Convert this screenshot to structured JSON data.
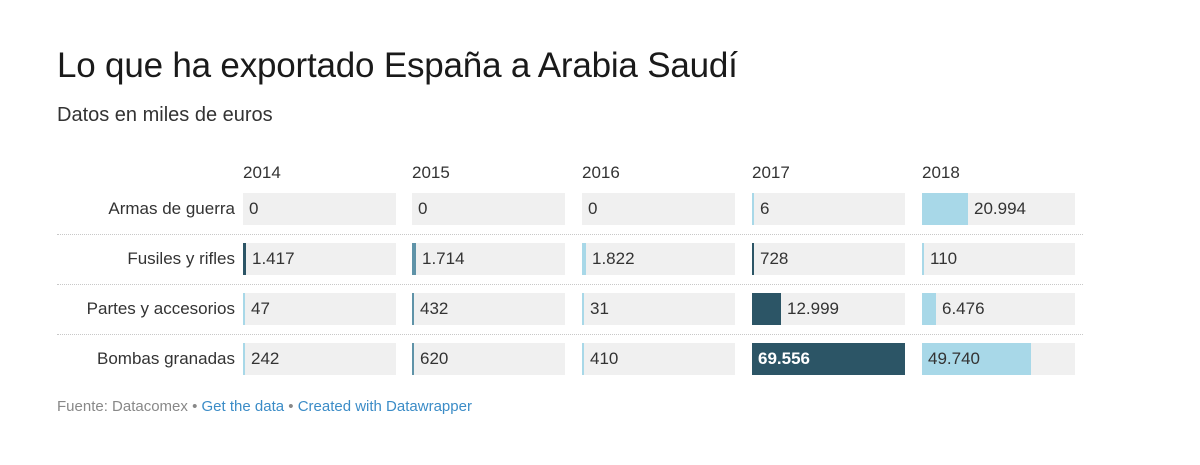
{
  "chart_data": {
    "type": "table",
    "title": "Lo que ha exportado España a Arabia Saudí",
    "subtitle": "Datos en miles de euros",
    "columns": [
      "2014",
      "2015",
      "2016",
      "2017",
      "2018"
    ],
    "rows": [
      {
        "label": "Armas de guerra",
        "values": [
          0,
          0,
          0,
          6,
          20994
        ],
        "display": [
          "0",
          "0",
          "0",
          "6",
          "20.994"
        ]
      },
      {
        "label": "Fusiles y rifles",
        "values": [
          1417,
          1714,
          1822,
          728,
          110
        ],
        "display": [
          "1.417",
          "1.714",
          "1.822",
          "728",
          "110"
        ]
      },
      {
        "label": "Partes y accesorios",
        "values": [
          47,
          432,
          31,
          12999,
          6476
        ],
        "display": [
          "47",
          "432",
          "31",
          "12.999",
          "6.476"
        ]
      },
      {
        "label": "Bombas granadas",
        "values": [
          242,
          620,
          410,
          69556,
          49740
        ],
        "display": [
          "242",
          "620",
          "410",
          "69.556",
          "49.740"
        ]
      }
    ],
    "colors": {
      "dark": "#2c5566",
      "mid": "#5f93a8",
      "light": "#a8d8e8",
      "cell_bg": "#f0f0f0"
    }
  },
  "footer": {
    "source": "Fuente: Datacomex",
    "separator": "•",
    "get_data": "Get the data",
    "created_with": "Created with Datawrapper"
  }
}
